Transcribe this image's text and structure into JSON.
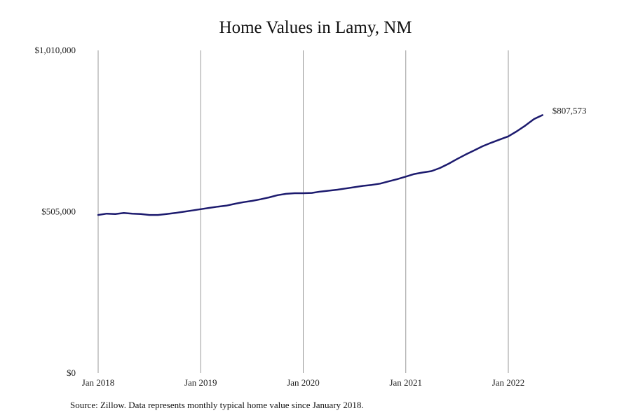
{
  "chart_data": {
    "type": "line",
    "title": "Home Values in Lamy, NM",
    "xlabel": "",
    "ylabel": "",
    "ylim": [
      0,
      1010000
    ],
    "y_ticks": [
      "$0",
      "$505,000",
      "$1,010,000"
    ],
    "y_tick_values": [
      0,
      505000,
      1010000
    ],
    "x_ticks": [
      "Jan 2018",
      "Jan 2019",
      "Jan 2020",
      "Jan 2021",
      "Jan 2022"
    ],
    "x_tick_values": [
      "2018-01",
      "2019-01",
      "2020-01",
      "2021-01",
      "2022-01"
    ],
    "grid": "vertical",
    "line_color": "#1c1a6e",
    "series": [
      {
        "x": [
          "2018-01",
          "2018-02",
          "2018-03",
          "2018-04",
          "2018-05",
          "2018-06",
          "2018-07",
          "2018-08",
          "2018-09",
          "2018-10",
          "2018-11",
          "2018-12",
          "2019-01",
          "2019-02",
          "2019-03",
          "2019-04",
          "2019-05",
          "2019-06",
          "2019-07",
          "2019-08",
          "2019-09",
          "2019-10",
          "2019-11",
          "2019-12",
          "2020-01",
          "2020-02",
          "2020-03",
          "2020-04",
          "2020-05",
          "2020-06",
          "2020-07",
          "2020-08",
          "2020-09",
          "2020-10",
          "2020-11",
          "2020-12",
          "2021-01",
          "2021-02",
          "2021-03",
          "2021-04",
          "2021-05",
          "2021-06",
          "2021-07",
          "2021-08",
          "2021-09",
          "2021-10",
          "2021-11",
          "2021-12",
          "2022-01",
          "2022-02",
          "2022-03",
          "2022-04",
          "2022-05"
        ],
        "values": [
          495000,
          499000,
          498000,
          501000,
          499000,
          498000,
          495000,
          495000,
          498000,
          501000,
          505000,
          509000,
          513000,
          517000,
          521000,
          524000,
          530000,
          535000,
          539000,
          544000,
          550000,
          557000,
          561000,
          563000,
          563000,
          564000,
          568000,
          571000,
          574000,
          578000,
          582000,
          586000,
          589000,
          593000,
          600000,
          607000,
          615000,
          623000,
          628000,
          632000,
          642000,
          655000,
          670000,
          684000,
          697000,
          710000,
          721000,
          731000,
          741000,
          757000,
          775000,
          795000,
          807573
        ]
      }
    ],
    "end_label": "$807,573"
  },
  "footer": {
    "source": "Source: Zillow. Data represents monthly typical home value since January 2018."
  }
}
